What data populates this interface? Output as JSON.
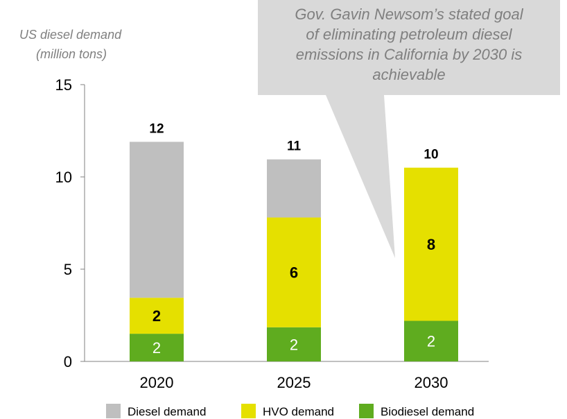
{
  "chart_data": {
    "type": "bar",
    "stacked": true,
    "ylabel_lines": [
      "US diesel demand",
      "(million tons)"
    ],
    "categories": [
      "2020",
      "2025",
      "2030"
    ],
    "ylim": [
      0,
      15
    ],
    "yticks": [
      0,
      5,
      10,
      15
    ],
    "grid": false,
    "series": [
      {
        "name": "Biodiesel demand",
        "color": "#5fac1f",
        "values": [
          1.5,
          1.85,
          2.2
        ],
        "labels": [
          "2",
          "2",
          "2"
        ],
        "label_color": "#ffffff"
      },
      {
        "name": "HVO demand",
        "color": "#e5e000",
        "values": [
          1.95,
          5.95,
          8.3
        ],
        "labels": [
          "2",
          "6",
          "8"
        ],
        "label_color": "#000000"
      },
      {
        "name": "Diesel demand",
        "color": "#bfbfbf",
        "values": [
          8.45,
          3.15,
          0
        ],
        "labels": [
          "",
          "",
          ""
        ],
        "label_color": "#000000"
      }
    ],
    "totals": [
      "12",
      "11",
      "10"
    ],
    "legend": {
      "position": "bottom",
      "order": [
        "Diesel demand",
        "HVO demand",
        "Biodiesel demand"
      ]
    },
    "annotation": {
      "text_lines": [
        "Gov. Gavin Newsom’s stated goal",
        "of eliminating petroleum diesel",
        "emissions in California by 2030 is",
        "achievable"
      ],
      "color": "#d9d9d9",
      "text_color": "#7f7f7f"
    }
  }
}
